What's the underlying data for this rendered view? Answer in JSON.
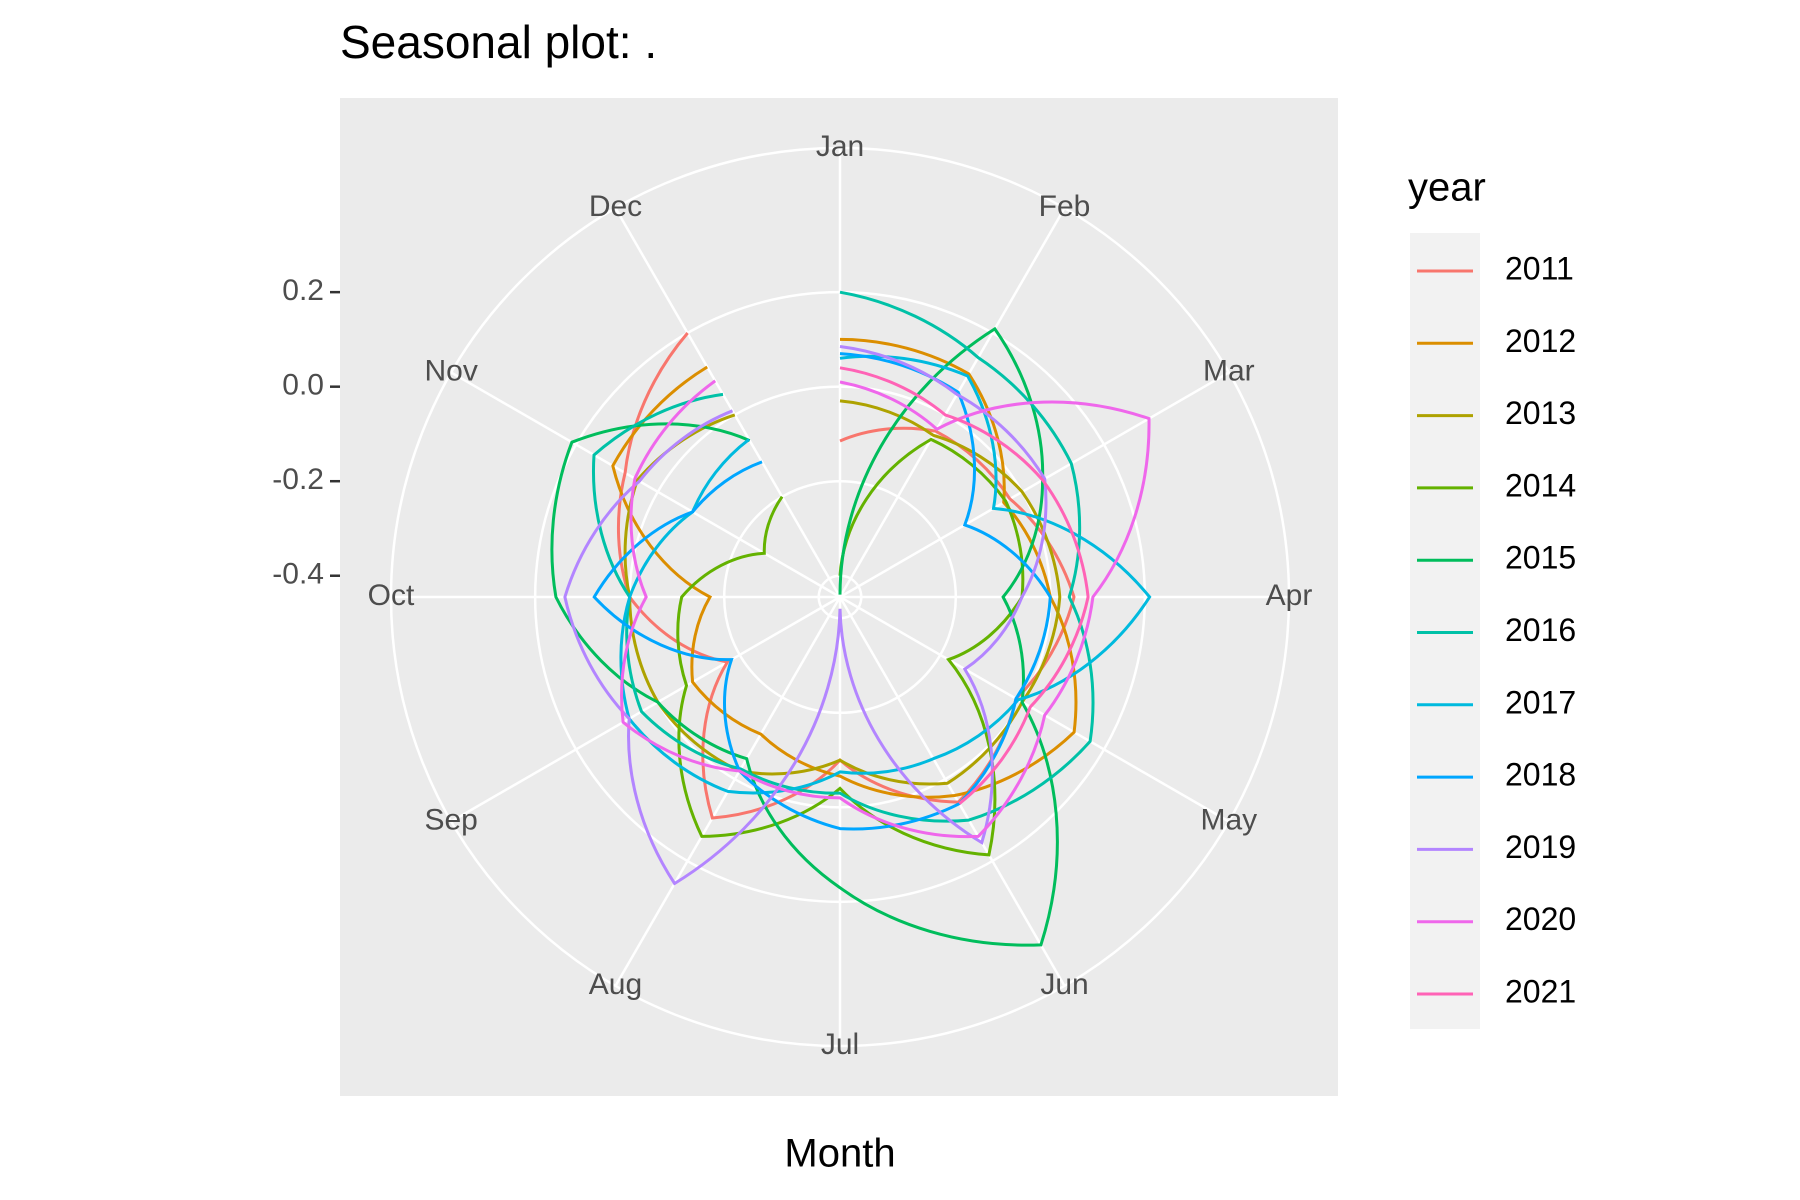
{
  "chart_data": {
    "type": "polar-line",
    "title": "Seasonal plot: .",
    "x_label": "Month",
    "legend_title": "year",
    "categories": [
      "Jan",
      "Feb",
      "Mar",
      "Apr",
      "May",
      "Jun",
      "Jul",
      "Aug",
      "Sep",
      "Oct",
      "Nov",
      "Dec"
    ],
    "ylim": [
      -0.445,
      0.505
    ],
    "yticks": [
      {
        "value": 0.2,
        "label": "0.2"
      },
      {
        "value": 0.0,
        "label": "0.0"
      },
      {
        "value": -0.2,
        "label": "-0.2"
      },
      {
        "value": -0.4,
        "label": "-0.4"
      }
    ],
    "grid": true,
    "series": [
      {
        "name": "2011",
        "color": "#F8766D",
        "values": [
          -0.115,
          -0.04,
          -0.03,
          0.05,
          -0.015,
          0.056,
          -0.1,
          0.095,
          -0.17,
          0.0,
          0.08,
          0.2
        ]
      },
      {
        "name": "2012",
        "color": "#DB8E00",
        "values": [
          0.1,
          0.1,
          -0.045,
          0.0,
          0.127,
          0.04,
          -0.066,
          -0.11,
          -0.085,
          -0.17,
          0.11,
          0.117
        ]
      },
      {
        "name": "2013",
        "color": "#AEA200",
        "values": [
          -0.03,
          -0.05,
          0.0,
          0.02,
          0.0,
          0.01,
          -0.1,
          -0.02,
          0.0,
          0.0,
          0.05,
          0.0
        ]
      },
      {
        "name": "2014",
        "color": "#64B200",
        "values": [
          -0.4,
          -0.06,
          -0.04,
          -0.06,
          -0.18,
          0.185,
          -0.04,
          0.14,
          -0.07,
          -0.11,
          -0.26,
          -0.2
        ]
      },
      {
        "name": "2015",
        "color": "#00BD5C",
        "values": [
          -0.44,
          0.21,
          0.05,
          -0.1,
          0.0,
          0.405,
          0.17,
          -0.05,
          0.0,
          0.156,
          0.21,
          -0.063
        ]
      },
      {
        "name": "2016",
        "color": "#00C1A7",
        "values": [
          0.2,
          0.14,
          0.12,
          0.04,
          0.166,
          0.1,
          -0.03,
          -0.025,
          0.04,
          0.0,
          0.156,
          0.05
        ]
      },
      {
        "name": "2017",
        "color": "#00BADE",
        "values": [
          0.06,
          0.095,
          -0.07,
          0.21,
          -0.01,
          -0.05,
          -0.075,
          0.03,
          0.07,
          0.0,
          -0.085,
          -0.06
        ]
      },
      {
        "name": "2018",
        "color": "#00A6FF",
        "values": [
          0.07,
          0.055,
          -0.14,
          0.0,
          -0.015,
          0.06,
          0.045,
          -0.02,
          -0.18,
          0.075,
          -0.085,
          -0.115
        ]
      },
      {
        "name": "2019",
        "color": "#B385FF",
        "values": [
          0.085,
          0.05,
          0.055,
          -0.06,
          -0.14,
          0.155,
          -0.42,
          0.255,
          0.07,
          0.137,
          0.045,
          0.01
        ]
      },
      {
        "name": "2020",
        "color": "#EF67EB",
        "values": [
          0.01,
          -0.035,
          0.31,
          0.09,
          0.055,
          0.14,
          -0.02,
          -0.02,
          0.085,
          -0.035,
          0.056,
          0.083
        ]
      },
      {
        "name": "2021",
        "color": "#FF63B6",
        "values": [
          0.04,
          0.0,
          0.05,
          0.08,
          0.02,
          0.06,
          null,
          null,
          null,
          null,
          null,
          null
        ]
      }
    ]
  }
}
